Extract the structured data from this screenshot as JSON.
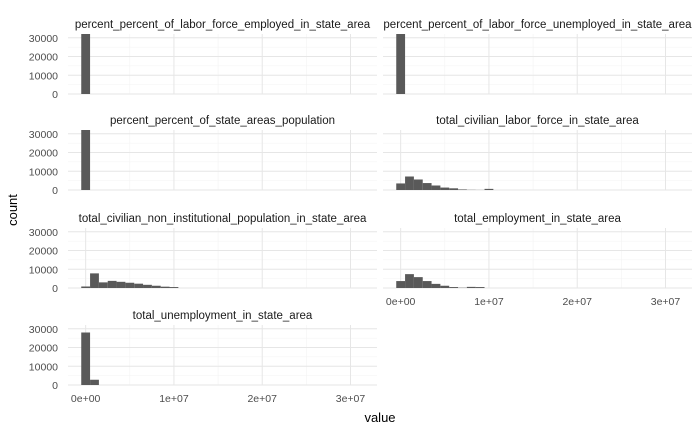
{
  "chart_data": {
    "type": "bar",
    "subtype": "histogram-facet-grid",
    "xlabel": "value",
    "ylabel": "count",
    "y_ticks": [
      "0",
      "10000",
      "20000",
      "30000"
    ],
    "ylim": [
      0,
      32000
    ],
    "x_ticks": [
      "0e+00",
      "1e+07",
      "2e+07",
      "3e+07"
    ],
    "xlim": [
      -2000000,
      33000000
    ],
    "bin_width": 1000000,
    "bar_color": "#595959",
    "grid": true,
    "panels": [
      {
        "title": "percent_percent_of_labor_force_employed_in_state_area",
        "bins": [
          {
            "x": 0,
            "count": 32000
          }
        ]
      },
      {
        "title": "percent_percent_of_labor_force_unemployed_in_state_area",
        "bins": [
          {
            "x": 0,
            "count": 32000
          }
        ]
      },
      {
        "title": "percent_percent_of_state_areas_population",
        "bins": [
          {
            "x": 0,
            "count": 32000
          }
        ]
      },
      {
        "title": "total_civilian_labor_force_in_state_area",
        "bins": [
          {
            "x": 0,
            "count": 3500
          },
          {
            "x": 1000000,
            "count": 7200
          },
          {
            "x": 2000000,
            "count": 5600
          },
          {
            "x": 3000000,
            "count": 3700
          },
          {
            "x": 4000000,
            "count": 2400
          },
          {
            "x": 5000000,
            "count": 1300
          },
          {
            "x": 6000000,
            "count": 900
          },
          {
            "x": 7000000,
            "count": 300
          },
          {
            "x": 8000000,
            "count": 100
          },
          {
            "x": 9000000,
            "count": 50
          },
          {
            "x": 10000000,
            "count": 600
          }
        ]
      },
      {
        "title": "total_civilian_non_institutional_population_in_state_area",
        "bins": [
          {
            "x": 0,
            "count": 800
          },
          {
            "x": 1000000,
            "count": 7800
          },
          {
            "x": 2000000,
            "count": 3000
          },
          {
            "x": 3000000,
            "count": 3800
          },
          {
            "x": 4000000,
            "count": 3300
          },
          {
            "x": 5000000,
            "count": 2800
          },
          {
            "x": 6000000,
            "count": 2300
          },
          {
            "x": 7000000,
            "count": 1700
          },
          {
            "x": 8000000,
            "count": 1200
          },
          {
            "x": 9000000,
            "count": 700
          },
          {
            "x": 10000000,
            "count": 500
          }
        ]
      },
      {
        "title": "total_employment_in_state_area",
        "bins": [
          {
            "x": 0,
            "count": 3700
          },
          {
            "x": 1000000,
            "count": 7400
          },
          {
            "x": 2000000,
            "count": 5800
          },
          {
            "x": 3000000,
            "count": 3700
          },
          {
            "x": 4000000,
            "count": 2200
          },
          {
            "x": 5000000,
            "count": 1200
          },
          {
            "x": 6000000,
            "count": 500
          },
          {
            "x": 7000000,
            "count": 150
          },
          {
            "x": 8000000,
            "count": 600
          },
          {
            "x": 9000000,
            "count": 500
          }
        ]
      },
      {
        "title": "total_unemployment_in_state_area",
        "bins": [
          {
            "x": 0,
            "count": 28000
          },
          {
            "x": 1000000,
            "count": 2800
          }
        ]
      }
    ]
  }
}
